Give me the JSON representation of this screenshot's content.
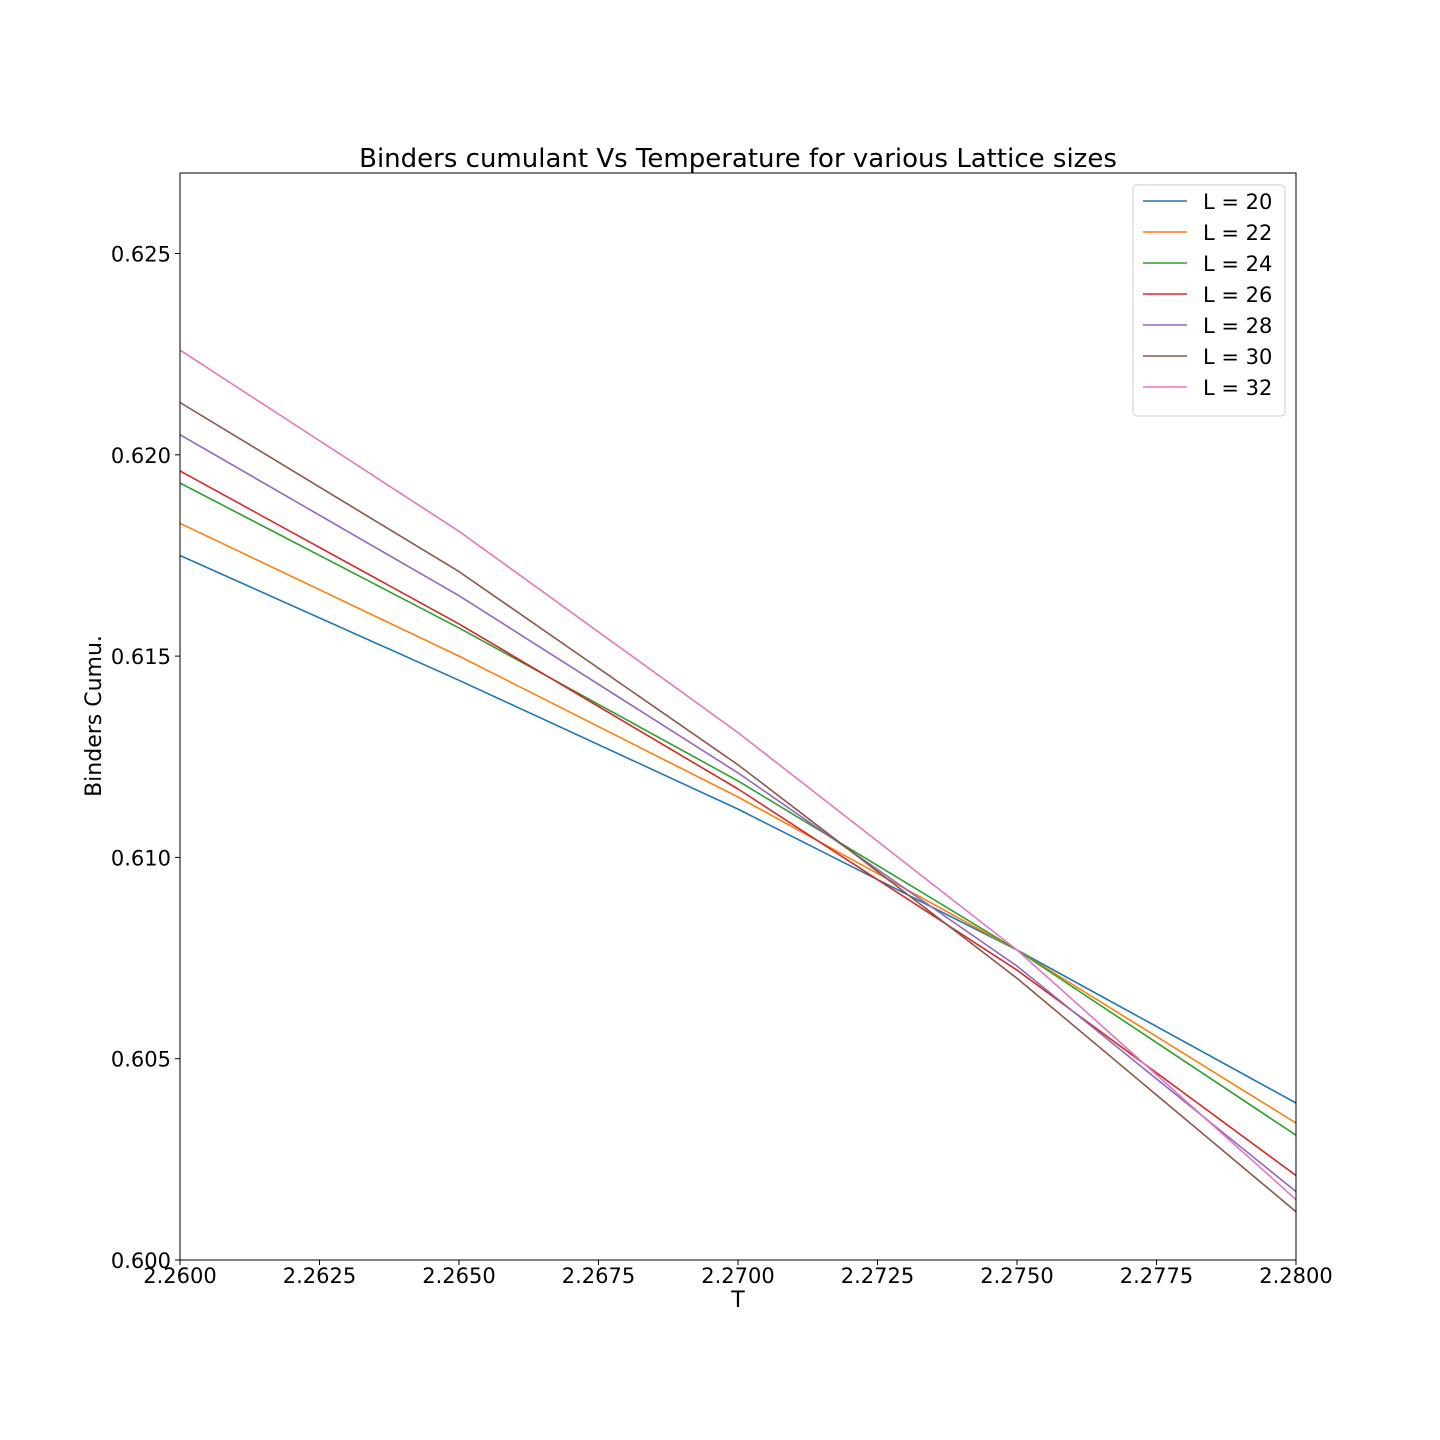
{
  "chart_data": {
    "type": "line",
    "title": "Binders cumulant Vs Temperature for various Lattice sizes",
    "xlabel": "T",
    "ylabel": "Binders Cumu.",
    "xlim": [
      2.26,
      2.28
    ],
    "ylim": [
      0.6,
      0.627
    ],
    "xticks": [
      2.26,
      2.2625,
      2.265,
      2.2675,
      2.27,
      2.2725,
      2.275,
      2.2775,
      2.28
    ],
    "xtick_labels": [
      "2.2600",
      "2.2625",
      "2.2650",
      "2.2675",
      "2.2700",
      "2.2725",
      "2.2750",
      "2.2775",
      "2.2800"
    ],
    "yticks": [
      0.6,
      0.605,
      0.61,
      0.615,
      0.62,
      0.625
    ],
    "ytick_labels": [
      "0.600",
      "0.605",
      "0.610",
      "0.615",
      "0.620",
      "0.625"
    ],
    "grid": false,
    "legend_position": "top-right",
    "x": [
      2.26,
      2.265,
      2.27,
      2.275,
      2.28
    ],
    "series": [
      {
        "name": "L = 20",
        "color": "#1f77b4",
        "values": [
          0.6175,
          0.6144,
          0.6112,
          0.6077,
          0.6039
        ]
      },
      {
        "name": "L = 22",
        "color": "#ff7f0e",
        "values": [
          0.6183,
          0.615,
          0.6115,
          0.6077,
          0.6034
        ]
      },
      {
        "name": "L = 24",
        "color": "#2ca02c",
        "values": [
          0.6193,
          0.6157,
          0.6119,
          0.6077,
          0.6031
        ]
      },
      {
        "name": "L = 26",
        "color": "#d62728",
        "values": [
          0.6196,
          0.6158,
          0.6117,
          0.6072,
          0.6021
        ]
      },
      {
        "name": "L = 28",
        "color": "#9467bd",
        "values": [
          0.6205,
          0.6165,
          0.6121,
          0.6073,
          0.6017
        ]
      },
      {
        "name": "L = 30",
        "color": "#8c564b",
        "values": [
          0.6213,
          0.6171,
          0.6123,
          0.607,
          0.6012
        ]
      },
      {
        "name": "L = 32",
        "color": "#e377c2",
        "values": [
          0.6226,
          0.6181,
          0.6131,
          0.6077,
          0.6015
        ]
      }
    ]
  }
}
